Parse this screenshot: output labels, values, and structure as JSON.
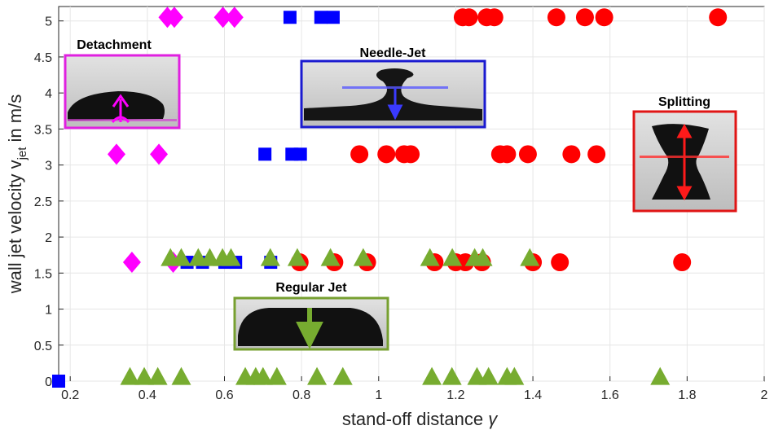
{
  "chart_data": {
    "type": "scatter",
    "title": "",
    "xlabel": "stand-off distance γ",
    "ylabel": "wall jet velocity v_jet in m/s",
    "ylabel_main": "wall jet velocity v",
    "ylabel_sub": "jet",
    "ylabel_unit": " in  m/s",
    "xlabel_text": "stand-off distance ",
    "xlabel_symbol": "γ",
    "xlim": [
      0.17,
      2.0
    ],
    "ylim": [
      0,
      5.2
    ],
    "x_ticks": [
      0.2,
      0.4,
      0.6,
      0.8,
      1,
      1.2,
      1.4,
      1.6,
      1.8,
      2
    ],
    "y_ticks": [
      0,
      0.5,
      1,
      1.5,
      2,
      2.5,
      3,
      3.5,
      4,
      4.5,
      5
    ],
    "grid": true,
    "series": [
      {
        "name": "Detachment",
        "marker": "diamond",
        "color": "#ff00ff",
        "points": [
          [
            0.452,
            5.05
          ],
          [
            0.47,
            5.05
          ],
          [
            0.596,
            5.05
          ],
          [
            0.626,
            5.05
          ],
          [
            0.32,
            3.15
          ],
          [
            0.43,
            3.15
          ],
          [
            0.36,
            1.65
          ],
          [
            0.467,
            1.65
          ]
        ]
      },
      {
        "name": "Needle-Jet",
        "marker": "square",
        "color": "#0000ff",
        "points": [
          [
            0.77,
            5.05
          ],
          [
            0.85,
            5.05
          ],
          [
            0.882,
            5.05
          ],
          [
            0.705,
            3.15
          ],
          [
            0.775,
            3.15
          ],
          [
            0.797,
            3.15
          ],
          [
            0.503,
            1.65
          ],
          [
            0.543,
            1.65
          ],
          [
            0.601,
            1.65
          ],
          [
            0.629,
            1.65
          ],
          [
            0.72,
            1.65
          ],
          [
            0.17,
            0
          ]
        ]
      },
      {
        "name": "Splitting",
        "marker": "circle",
        "color": "#ff0000",
        "points": [
          [
            1.218,
            5.05
          ],
          [
            1.234,
            5.05
          ],
          [
            1.28,
            5.05
          ],
          [
            1.3,
            5.05
          ],
          [
            1.461,
            5.05
          ],
          [
            1.535,
            5.05
          ],
          [
            1.585,
            5.05
          ],
          [
            1.88,
            5.05
          ],
          [
            0.95,
            3.15
          ],
          [
            1.02,
            3.15
          ],
          [
            1.066,
            3.15
          ],
          [
            1.083,
            3.15
          ],
          [
            1.315,
            3.15
          ],
          [
            1.333,
            3.15
          ],
          [
            1.387,
            3.15
          ],
          [
            1.5,
            3.15
          ],
          [
            1.565,
            3.15
          ],
          [
            0.795,
            1.65
          ],
          [
            0.885,
            1.65
          ],
          [
            0.97,
            1.65
          ],
          [
            1.145,
            1.65
          ],
          [
            1.2,
            1.65
          ],
          [
            1.225,
            1.65
          ],
          [
            1.268,
            1.65
          ],
          [
            1.4,
            1.65
          ],
          [
            1.47,
            1.65
          ],
          [
            1.787,
            1.65
          ]
        ]
      },
      {
        "name": "Regular Jet",
        "marker": "triangle",
        "color": "#77ac30",
        "points": [
          [
            0.46,
            1.7
          ],
          [
            0.488,
            1.7
          ],
          [
            0.532,
            1.7
          ],
          [
            0.562,
            1.7
          ],
          [
            0.595,
            1.7
          ],
          [
            0.617,
            1.7
          ],
          [
            0.719,
            1.7
          ],
          [
            0.789,
            1.7
          ],
          [
            0.875,
            1.7
          ],
          [
            0.96,
            1.7
          ],
          [
            1.133,
            1.7
          ],
          [
            1.191,
            1.7
          ],
          [
            1.249,
            1.7
          ],
          [
            1.27,
            1.7
          ],
          [
            1.392,
            1.7
          ],
          [
            0.355,
            0.05
          ],
          [
            0.392,
            0.05
          ],
          [
            0.427,
            0.05
          ],
          [
            0.488,
            0.05
          ],
          [
            0.654,
            0.05
          ],
          [
            0.681,
            0.05
          ],
          [
            0.7,
            0.05
          ],
          [
            0.736,
            0.05
          ],
          [
            0.84,
            0.05
          ],
          [
            0.907,
            0.05
          ],
          [
            1.138,
            0.05
          ],
          [
            1.19,
            0.05
          ],
          [
            1.255,
            0.05
          ],
          [
            1.285,
            0.05
          ],
          [
            1.333,
            0.05
          ],
          [
            1.352,
            0.05
          ],
          [
            1.73,
            0.05
          ]
        ]
      }
    ],
    "insets": [
      {
        "title": "Detachment",
        "color": "#e020e0"
      },
      {
        "title": "Needle-Jet",
        "color": "#1a1ad0"
      },
      {
        "title": "Splitting",
        "color": "#e01515"
      },
      {
        "title": "Regular Jet",
        "color": "#77a030"
      }
    ]
  }
}
